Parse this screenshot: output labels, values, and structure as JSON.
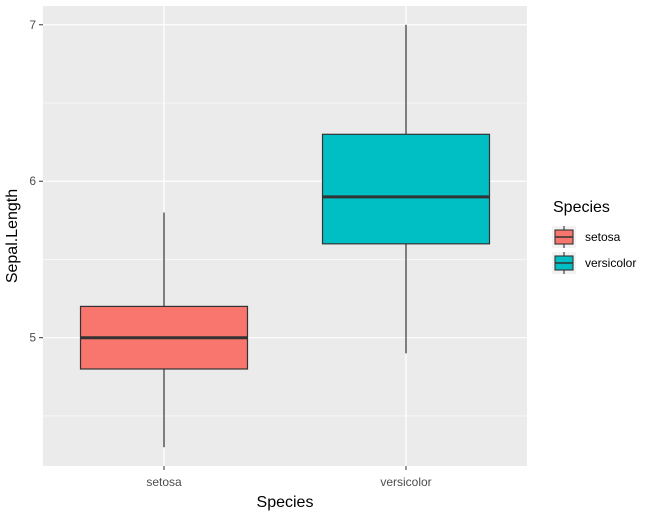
{
  "chart_data": {
    "type": "boxplot",
    "categories": [
      "setosa",
      "versicolor"
    ],
    "xlabel": "Species",
    "ylabel": "Sepal.Length",
    "ylim": [
      4.18,
      7.12
    ],
    "yticks": [
      5,
      6,
      7
    ],
    "series": [
      {
        "name": "setosa",
        "min": 4.3,
        "q1": 4.8,
        "median": 5.0,
        "q3": 5.2,
        "max": 5.8,
        "color": "#F8766D"
      },
      {
        "name": "versicolor",
        "min": 4.9,
        "q1": 5.6,
        "median": 5.9,
        "q3": 6.3,
        "max": 7.0,
        "color": "#00BFC4"
      }
    ],
    "legend": {
      "title": "Species",
      "entries": [
        "setosa",
        "versicolor"
      ],
      "position": "right"
    },
    "grid": true,
    "panel_background": "#EBEBEB"
  }
}
